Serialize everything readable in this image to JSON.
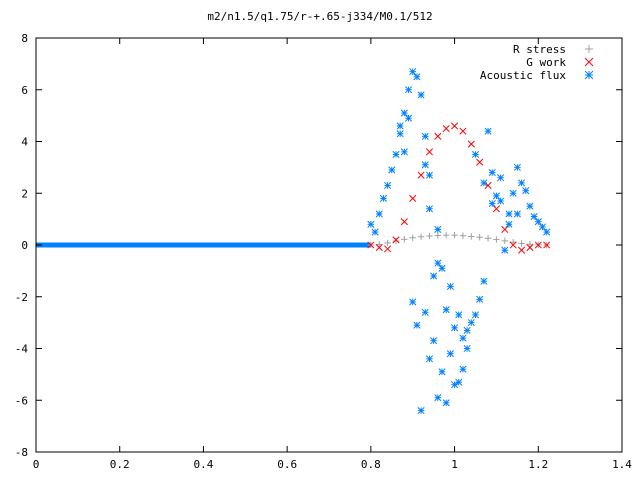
{
  "chart_data": {
    "type": "scatter",
    "title": "m2/n1.5/q1.75/r-+.65-j334/M0.1/512",
    "xlabel": "",
    "ylabel": "",
    "xlim": [
      0,
      1.4
    ],
    "ylim": [
      -8,
      8
    ],
    "x_ticks": [
      0,
      0.2,
      0.4,
      0.6,
      0.8,
      1,
      1.2,
      1.4
    ],
    "y_ticks": [
      -8,
      -6,
      -4,
      -2,
      0,
      2,
      4,
      6,
      8
    ],
    "x_tick_labels": [
      "0",
      "0.2",
      "0.4",
      "0.6",
      "0.8",
      "1",
      "1.2",
      "1.4"
    ],
    "y_tick_labels": [
      "-8",
      "-6",
      "-4",
      "-2",
      "0",
      "2",
      "4",
      "6",
      "8"
    ],
    "grid": false,
    "legend_position": "top-right",
    "series": [
      {
        "name": "R stress",
        "marker": "plus",
        "color": "#a0a0a0",
        "x": [
          0.8,
          0.82,
          0.84,
          0.86,
          0.88,
          0.9,
          0.92,
          0.94,
          0.96,
          0.98,
          1.0,
          1.02,
          1.04,
          1.06,
          1.08,
          1.1,
          1.12,
          1.14,
          1.16,
          1.18,
          1.2,
          1.22
        ],
        "y": [
          0.0,
          0.02,
          0.08,
          0.15,
          0.22,
          0.28,
          0.32,
          0.35,
          0.37,
          0.38,
          0.38,
          0.36,
          0.33,
          0.3,
          0.26,
          0.21,
          0.16,
          0.11,
          0.06,
          0.03,
          0.01,
          0.0
        ]
      },
      {
        "name": "G work",
        "marker": "cross",
        "color": "#ff0000",
        "x": [
          0.8,
          0.82,
          0.84,
          0.86,
          0.88,
          0.9,
          0.92,
          0.94,
          0.96,
          0.98,
          1.0,
          1.02,
          1.04,
          1.06,
          1.08,
          1.1,
          1.12,
          1.14,
          1.16,
          1.18,
          1.2,
          1.22
        ],
        "y": [
          0.0,
          -0.1,
          -0.15,
          0.2,
          0.9,
          1.8,
          2.7,
          3.6,
          4.2,
          4.5,
          4.6,
          4.4,
          3.9,
          3.2,
          2.3,
          1.4,
          0.6,
          0.0,
          -0.2,
          -0.1,
          0.0,
          0.0
        ]
      },
      {
        "name": "Acoustic flux",
        "marker": "star",
        "color": "#0080ff",
        "x": [
          0.8,
          0.81,
          0.82,
          0.83,
          0.84,
          0.85,
          0.86,
          0.87,
          0.88,
          0.89,
          0.9,
          0.9,
          0.91,
          0.91,
          0.92,
          0.92,
          0.93,
          0.93,
          0.94,
          0.94,
          0.95,
          0.95,
          0.96,
          0.96,
          0.97,
          0.97,
          0.98,
          0.98,
          0.99,
          0.99,
          1.0,
          1.0,
          1.01,
          1.01,
          1.02,
          1.02,
          1.03,
          1.03,
          1.04,
          1.05,
          1.06,
          1.07,
          1.08,
          1.09,
          1.1,
          1.11,
          1.12,
          1.13,
          1.14,
          1.15,
          1.16,
          1.17,
          1.18,
          1.19,
          1.2,
          1.21,
          1.22,
          0.87,
          0.88,
          0.89,
          0.93,
          0.94,
          0.96,
          1.05,
          1.07,
          1.09,
          1.11,
          1.13,
          1.15
        ],
        "y": [
          0.8,
          0.5,
          1.2,
          1.8,
          2.3,
          2.9,
          3.5,
          4.3,
          5.1,
          6.0,
          6.7,
          -2.2,
          6.5,
          -3.1,
          5.8,
          -6.4,
          4.2,
          -2.6,
          2.7,
          -4.4,
          -1.2,
          -3.7,
          0.6,
          -5.9,
          -0.9,
          -4.9,
          -2.5,
          -6.1,
          -1.6,
          -4.2,
          -3.2,
          -5.4,
          -2.7,
          -5.3,
          -3.6,
          -4.8,
          -3.3,
          -4.0,
          -3.0,
          -2.7,
          -2.1,
          -1.4,
          4.4,
          2.8,
          1.9,
          2.6,
          -0.2,
          1.2,
          2.0,
          3.0,
          2.4,
          2.1,
          1.5,
          1.1,
          0.9,
          0.7,
          0.5,
          4.6,
          3.6,
          4.9,
          3.1,
          1.4,
          -0.7,
          3.5,
          2.4,
          1.6,
          1.7,
          0.8,
          1.2
        ],
        "baseline": {
          "x_start": 0,
          "x_end": 0.8,
          "y": 0
        }
      }
    ]
  }
}
